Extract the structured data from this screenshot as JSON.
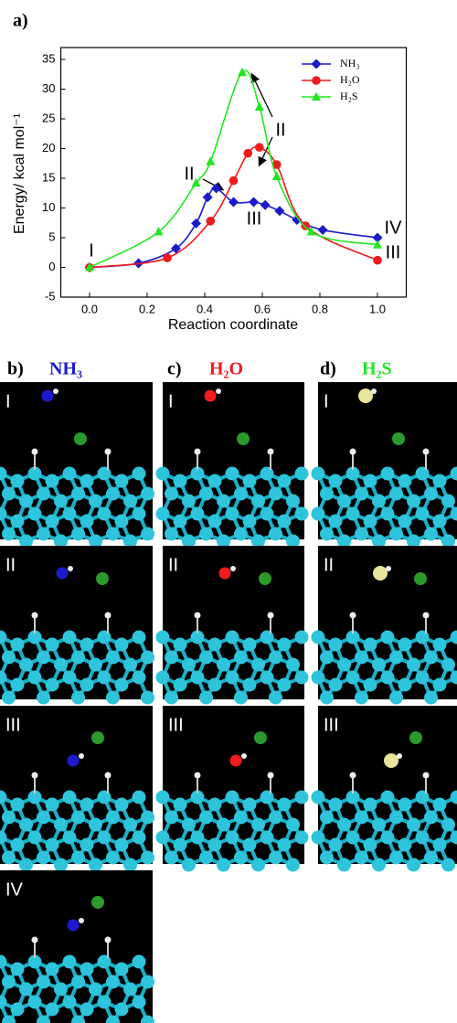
{
  "chart_data": {
    "type": "line",
    "panel_label": "a)",
    "xlabel": "Reaction coordinate",
    "ylabel": "Energy/ kcal mol⁻¹",
    "xlim": [
      -0.1,
      1.1
    ],
    "ylim": [
      -5,
      37
    ],
    "xticks": [
      {
        "value": 0,
        "label": "0.0"
      },
      {
        "value": 0.2,
        "label": "0.2"
      },
      {
        "value": 0.4,
        "label": "0.4"
      },
      {
        "value": 0.6,
        "label": "0.6"
      },
      {
        "value": 0.8,
        "label": "0.8"
      },
      {
        "value": 1,
        "label": "1.0"
      }
    ],
    "yticks": [
      -5,
      0,
      5,
      10,
      15,
      20,
      25,
      30,
      35
    ],
    "legend": "upper right",
    "series": [
      {
        "name": "NH₃",
        "color": "#1a1acc",
        "marker": "diamond",
        "x": [
          0,
          0.17,
          0.3,
          0.37,
          0.41,
          0.44,
          0.5,
          0.57,
          0.61,
          0.66,
          0.72,
          0.81,
          1.0
        ],
        "values": [
          0,
          0.7,
          3.2,
          7.4,
          11.8,
          13.3,
          11.0,
          11.0,
          10.5,
          9.5,
          8.0,
          6.3,
          5.0
        ]
      },
      {
        "name": "H₂O",
        "color": "#ee1c1c",
        "marker": "circle",
        "x": [
          0,
          0.27,
          0.42,
          0.5,
          0.55,
          0.59,
          0.65,
          0.75,
          1.0
        ],
        "values": [
          0,
          1.6,
          7.8,
          14.6,
          19.2,
          20.2,
          17.3,
          7.0,
          1.2
        ]
      },
      {
        "name": "H₂S",
        "color": "#22e622",
        "marker": "triangle",
        "x": [
          0,
          0.24,
          0.37,
          0.42,
          0.53,
          0.59,
          0.65,
          0.77,
          1.0
        ],
        "values": [
          0,
          6.0,
          14.2,
          17.8,
          32.8,
          27.0,
          15.3,
          6.0,
          3.8
        ]
      }
    ],
    "annotations": [
      "I",
      "II",
      "II",
      "III",
      "IV",
      "III"
    ]
  },
  "panels": [
    {
      "label": "b)",
      "molecule": "NH₃",
      "color": "#1a1acc",
      "frames": [
        "I",
        "II",
        "III",
        "IV"
      ]
    },
    {
      "label": "c)",
      "molecule": "H₂O",
      "color": "#ee1c1c",
      "frames": [
        "I",
        "II",
        "III"
      ]
    },
    {
      "label": "d)",
      "molecule": "H₂S",
      "color": "#22e622",
      "frames": [
        "I",
        "II",
        "III"
      ]
    }
  ]
}
